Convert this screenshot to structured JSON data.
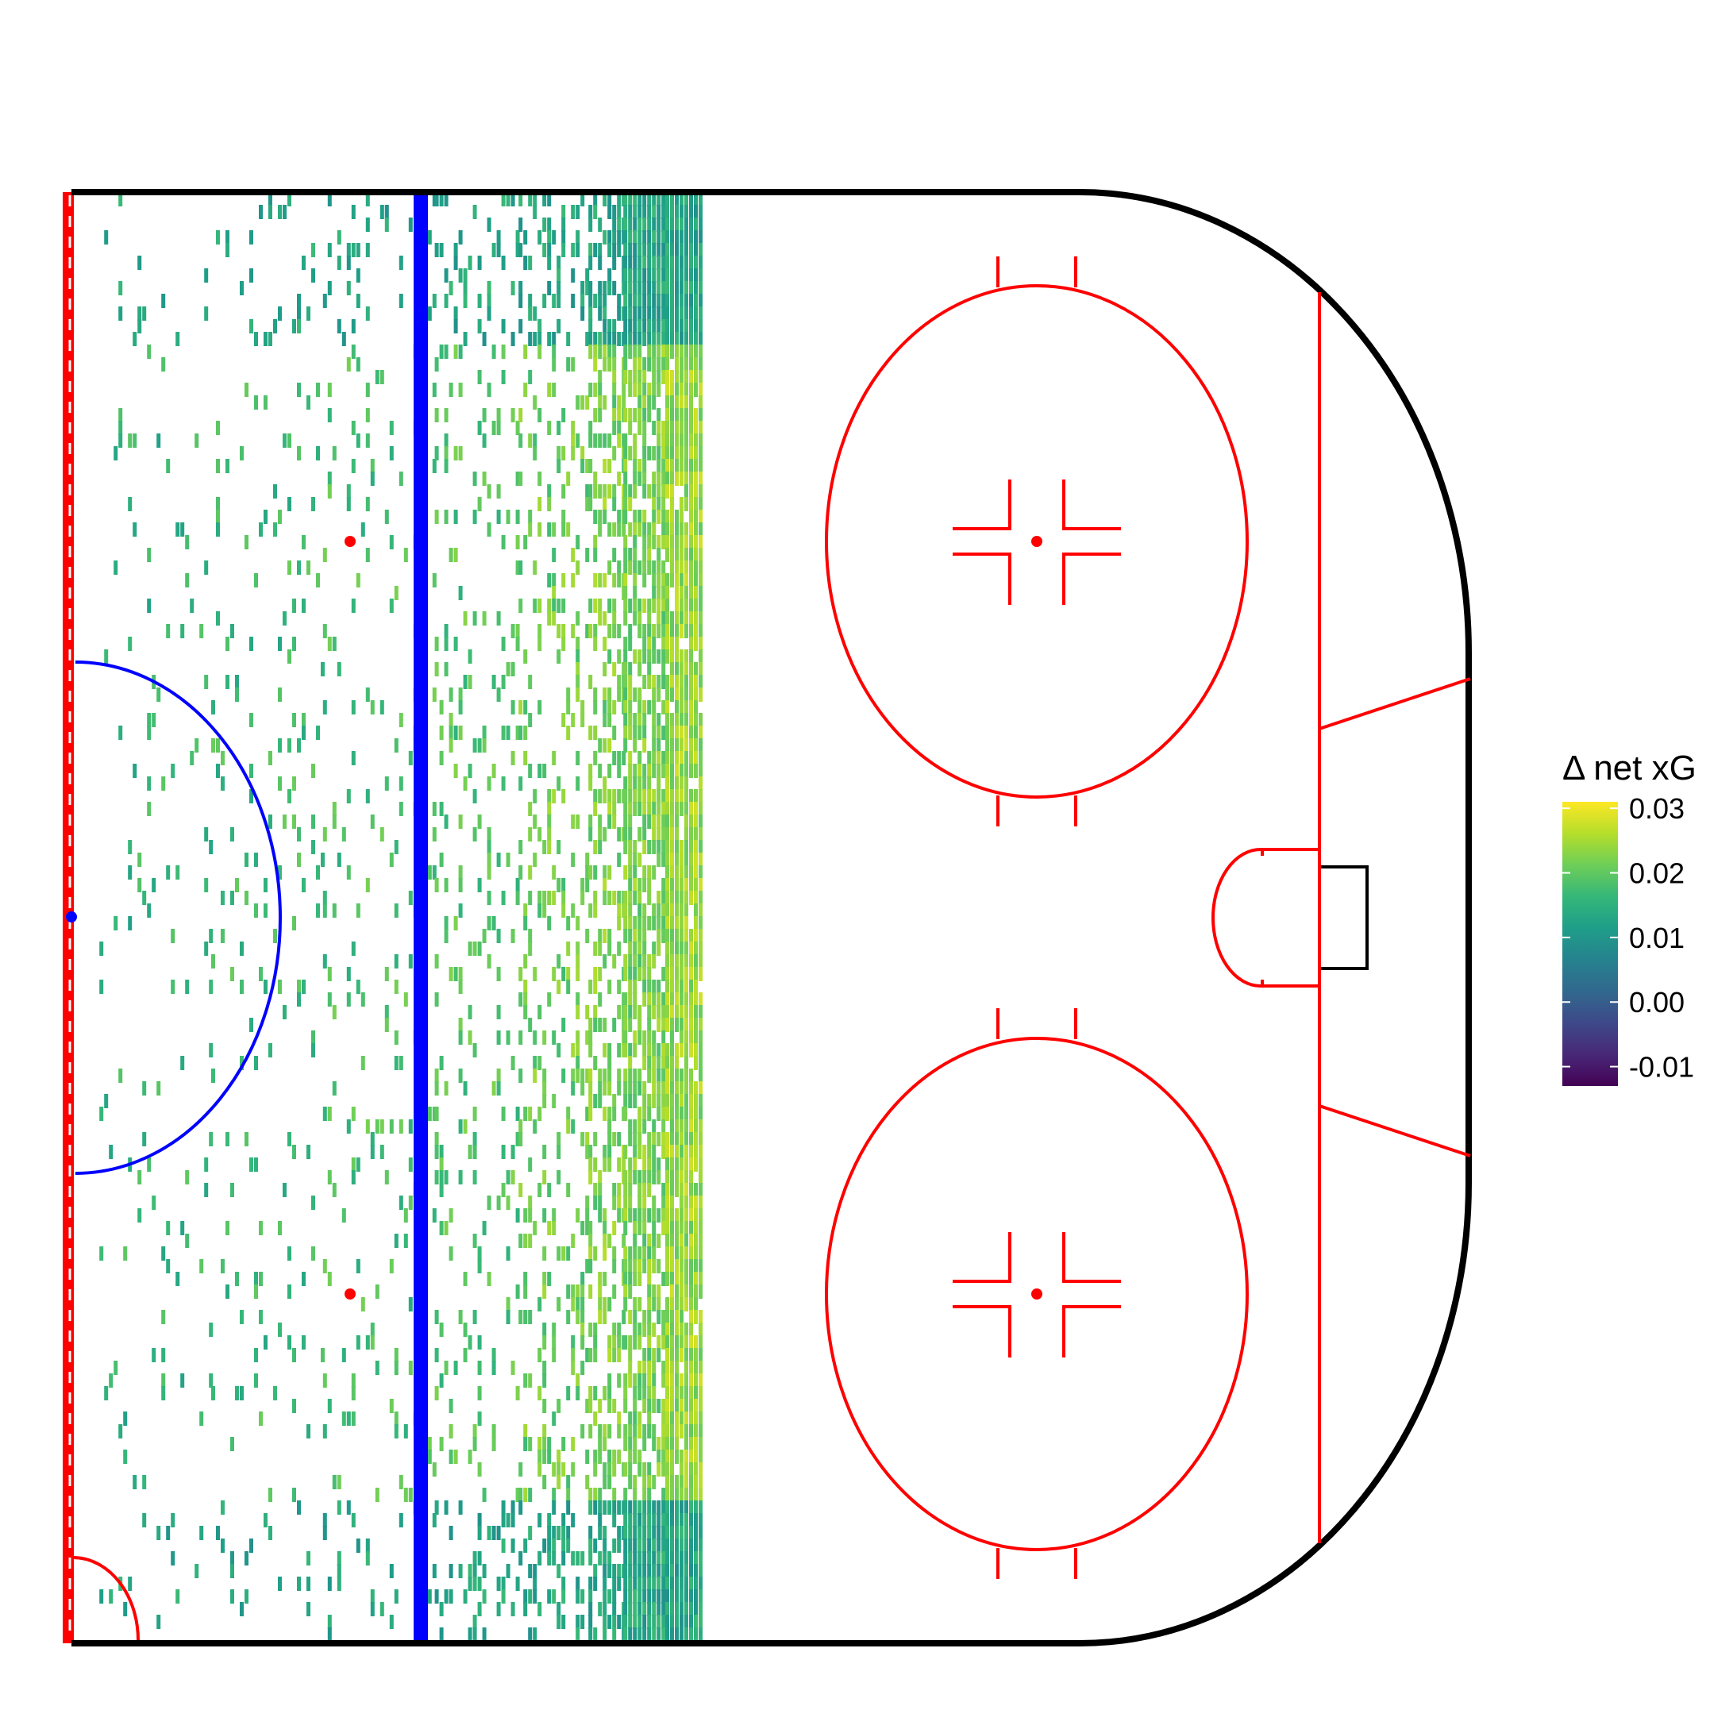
{
  "chart_data": {
    "type": "heatmap",
    "title": "",
    "xlabel": "",
    "ylabel": "",
    "grid": false,
    "description_scope": "half-rink (offensive zone) with binned shot/event density coloured by change in net expected goals",
    "legend": {
      "title": "Δ net xG",
      "position": "right",
      "colormap": "viridis",
      "ticks": [
        "0.03",
        "0.02",
        "0.01",
        "0.00",
        "-0.01"
      ],
      "tick_values": [
        0.03,
        0.02,
        0.01,
        0.0,
        -0.01
      ],
      "range": [
        -0.013,
        0.031
      ]
    },
    "x_range": [
      0,
      100
    ],
    "y_range": [
      -42.5,
      42.5
    ],
    "heat_columns": [
      {
        "x_from": 2,
        "x_to": 10,
        "density": 0.04,
        "mean_value": 0.016
      },
      {
        "x_from": 10,
        "x_to": 18,
        "density": 0.06,
        "mean_value": 0.017
      },
      {
        "x_from": 18,
        "x_to": 26,
        "density": 0.08,
        "mean_value": 0.018
      },
      {
        "x_from": 26,
        "x_to": 32,
        "density": 0.14,
        "mean_value": 0.019
      },
      {
        "x_from": 32,
        "x_to": 37,
        "density": 0.24,
        "mean_value": 0.021
      },
      {
        "x_from": 37,
        "x_to": 39.5,
        "density": 0.45,
        "mean_value": 0.022
      },
      {
        "x_from": 39.5,
        "x_to": 42.5,
        "density": 0.75,
        "mean_value": 0.022
      },
      {
        "x_from": 42.5,
        "x_to": 45,
        "density": 0.95,
        "mean_value": 0.024
      }
    ],
    "edge_band_value": 0.013
  },
  "colors": {
    "boards": "#000000",
    "red_lines": "#ff0000",
    "blue_line": "#0000ff",
    "goal_frame": "#000000",
    "viridis": [
      "#440154",
      "#482878",
      "#3e4989",
      "#31688e",
      "#26828e",
      "#1f9e89",
      "#35b779",
      "#6ece58",
      "#b5de2b",
      "#fde725"
    ]
  }
}
